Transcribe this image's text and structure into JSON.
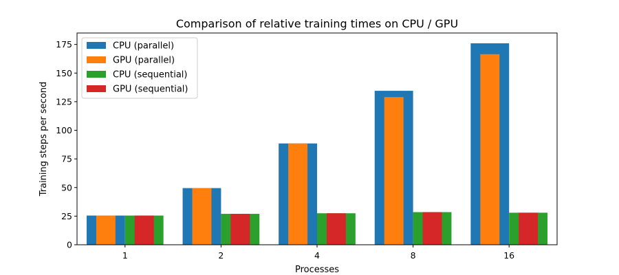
{
  "chart_data": {
    "type": "bar",
    "title": "Comparison of relative training times on CPU / GPU",
    "xlabel": "Processes",
    "ylabel": "Training steps per second",
    "categories": [
      "1",
      "2",
      "4",
      "8",
      "16"
    ],
    "ylim": [
      0,
      185
    ],
    "yticks": [
      0,
      25,
      50,
      75,
      100,
      125,
      150,
      175
    ],
    "grid": false,
    "legend_position": "top-left",
    "series": [
      {
        "name": "CPU (parallel)",
        "color": "#1f77b4",
        "values": [
          25.5,
          49.5,
          88.5,
          134.5,
          176
        ]
      },
      {
        "name": "GPU (parallel)",
        "color": "#ff7f0e",
        "values": [
          25.5,
          49.5,
          88.5,
          129,
          166.5
        ]
      },
      {
        "name": "CPU (sequential)",
        "color": "#2ca02c",
        "values": [
          25.5,
          27,
          27.5,
          28.5,
          28
        ]
      },
      {
        "name": "GPU (sequential)",
        "color": "#d62728",
        "values": [
          25.5,
          27,
          27.5,
          28.5,
          28
        ]
      }
    ]
  }
}
